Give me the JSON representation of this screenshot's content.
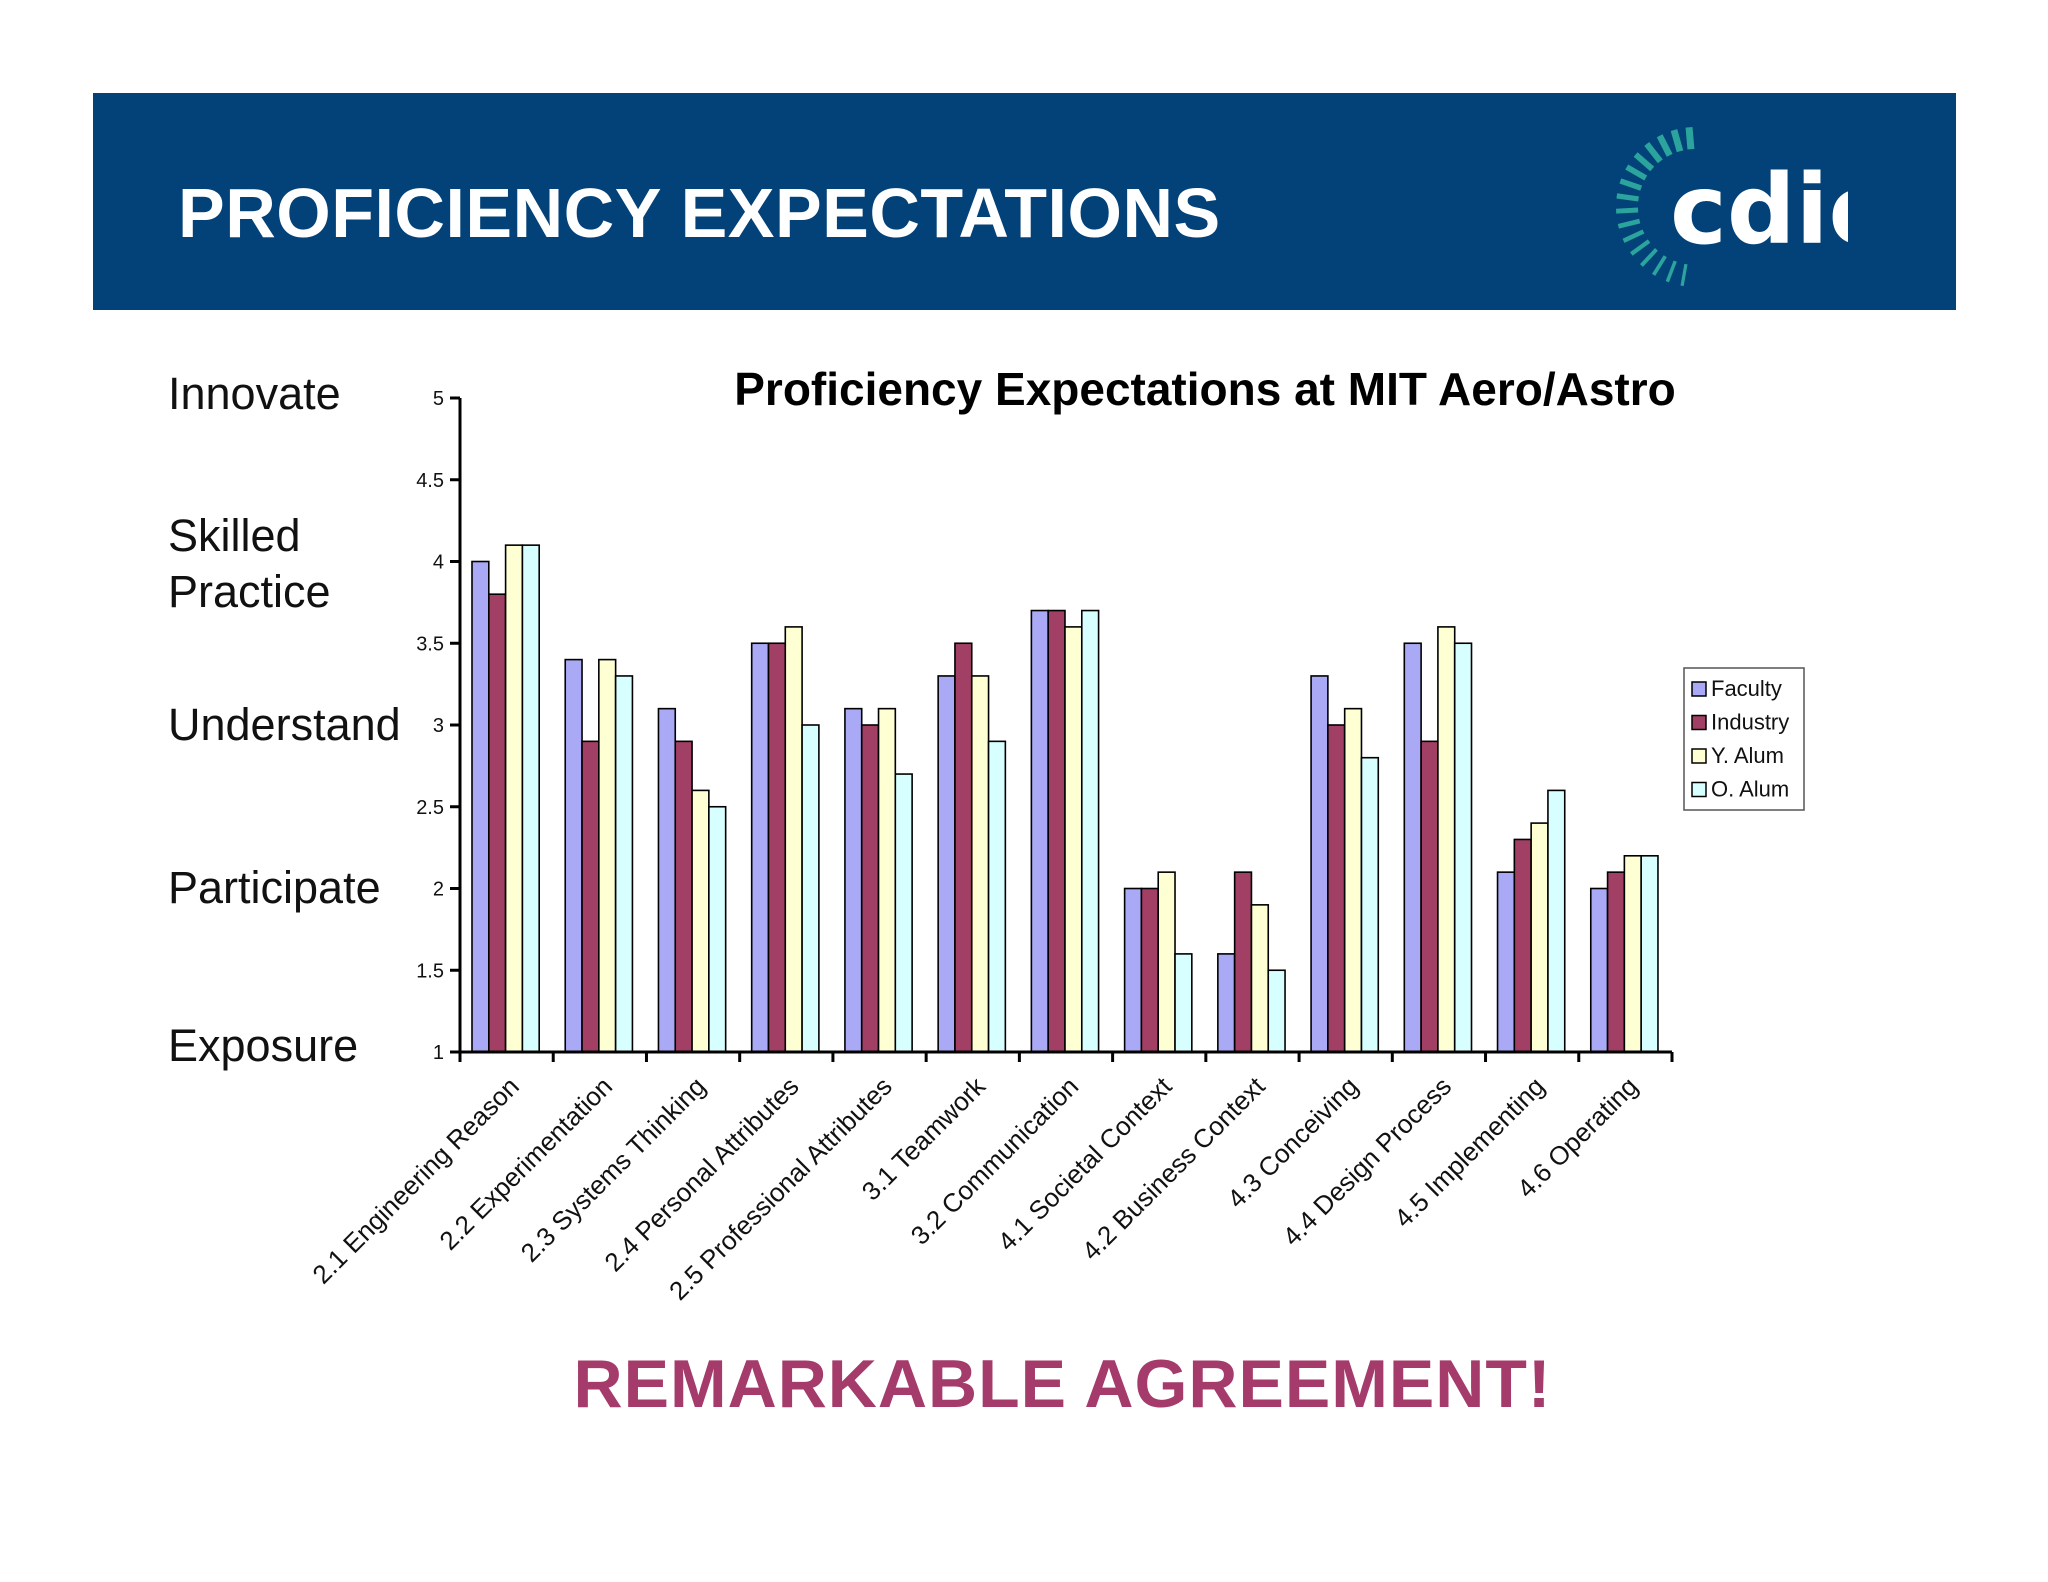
{
  "banner": {
    "title": "PROFICIENCY EXPECTATIONS",
    "logo_text": "cdio",
    "background": "#034179",
    "logo_arc_color": "#2aa49c"
  },
  "levels": [
    "Innovate",
    "Skilled Practice",
    "Understand",
    "Participate",
    "Exposure"
  ],
  "footer": {
    "text": "REMARKABLE AGREEMENT!",
    "color": "#a53b6b"
  },
  "chart_data": {
    "type": "bar",
    "title": "Proficiency Expectations at MIT Aero/Astro",
    "xlabel": "",
    "ylabel": "",
    "ylim": [
      1,
      5
    ],
    "yticks": [
      "1",
      "1.5",
      "2",
      "2.5",
      "3",
      "3.5",
      "4",
      "4.5",
      "5"
    ],
    "grid": false,
    "legend_position": "right",
    "categories": [
      "2.1 Engineering Reason",
      "2.2 Experimentation",
      "2.3 Systems Thinking",
      "2.4 Personal Attributes",
      "2.5 Professional Attributes",
      "3.1 Teamwork",
      "3.2 Communication",
      "4.1 Societal Context",
      "4.2 Business Context",
      "4.3 Conceiving",
      "4.4 Design Process",
      "4.5 Implementing",
      "4.6 Operating"
    ],
    "series": [
      {
        "name": "Faculty",
        "color": "#a9a9f5",
        "values": [
          4.0,
          3.4,
          3.1,
          3.5,
          3.1,
          3.3,
          3.7,
          2.0,
          1.6,
          3.3,
          3.5,
          2.1,
          2.0
        ]
      },
      {
        "name": "Industry",
        "color": "#a23f65",
        "values": [
          3.8,
          2.9,
          2.9,
          3.5,
          3.0,
          3.5,
          3.7,
          2.0,
          2.1,
          3.0,
          2.9,
          2.3,
          2.1
        ]
      },
      {
        "name": "Y. Alum",
        "color": "#ffffd4",
        "values": [
          4.1,
          3.4,
          2.6,
          3.6,
          3.1,
          3.3,
          3.6,
          2.1,
          1.9,
          3.1,
          3.6,
          2.4,
          2.2
        ]
      },
      {
        "name": "O. Alum",
        "color": "#d8ffff",
        "values": [
          4.1,
          3.3,
          2.5,
          3.0,
          2.7,
          2.9,
          3.7,
          1.6,
          1.5,
          2.8,
          3.5,
          2.6,
          2.2
        ]
      }
    ]
  }
}
